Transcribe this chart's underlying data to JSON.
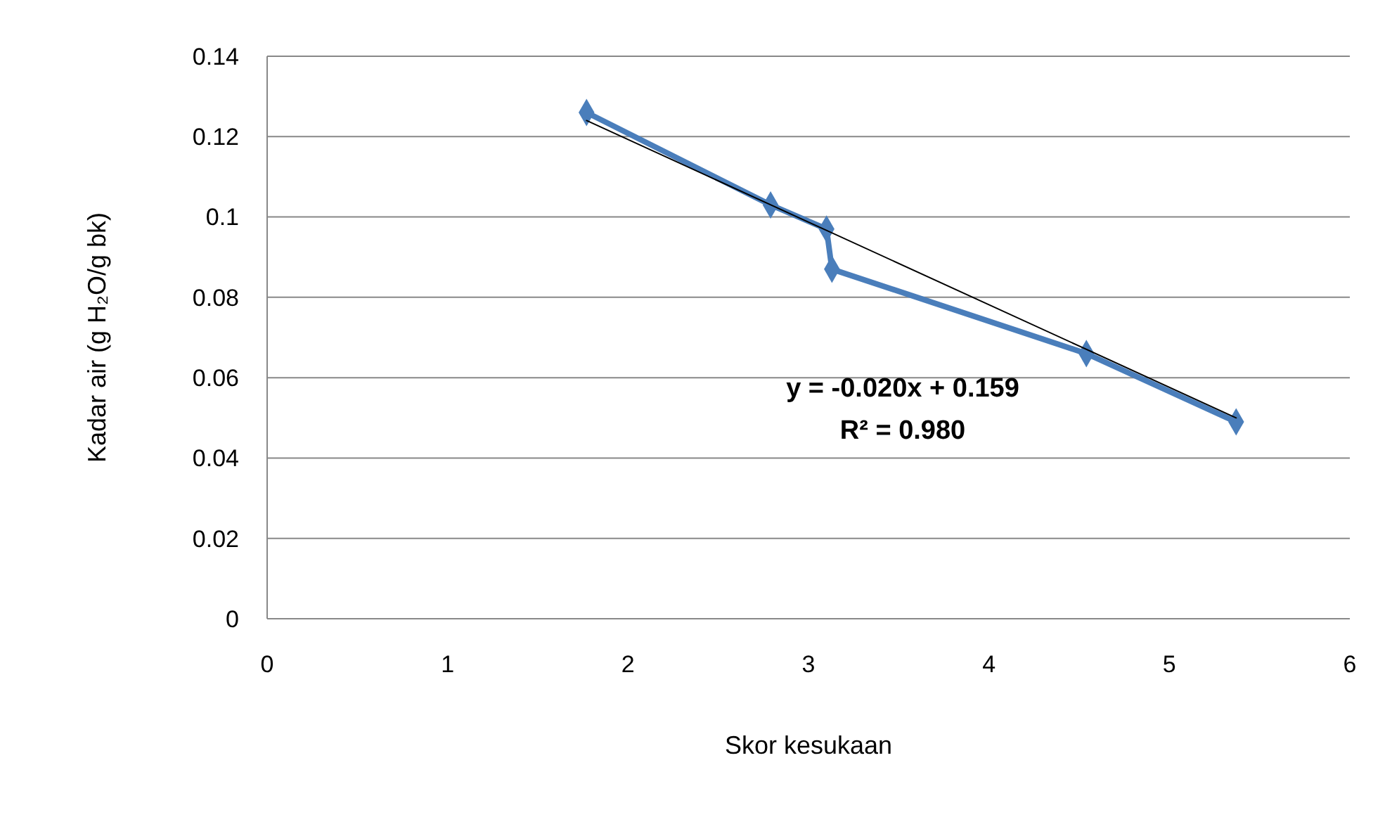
{
  "chart_data": {
    "type": "line",
    "xlabel": "Skor kesukaan",
    "ylabel": "Kadar air (g H₂O/g bk)",
    "xlim": [
      0,
      6
    ],
    "xticks": [
      0,
      1,
      2,
      3,
      4,
      5,
      6
    ],
    "ylim": [
      0,
      0.14
    ],
    "yticks": [
      0,
      {
        "value": 0.02,
        "label": "0.02"
      },
      {
        "value": 0.04,
        "label": "0.04"
      },
      {
        "value": 0.06,
        "label": "0.06"
      },
      {
        "value": 0.08,
        "label": "0.08"
      },
      0.1,
      {
        "value": 0.12,
        "label": "0.12"
      },
      {
        "value": 0.14,
        "label": "0.14"
      }
    ],
    "grid": "y",
    "series": [
      {
        "type": "line",
        "color": "#4a7ebb",
        "marker": "diamond",
        "x": [
          1.77,
          2.79,
          3.1,
          3.13,
          4.54,
          5.37
        ],
        "values": [
          0.126,
          0.103,
          0.097,
          0.087,
          0.066,
          0.049
        ]
      },
      {
        "type": "line",
        "color": "#000000",
        "marker": "none",
        "x": [
          1.77,
          5.37
        ],
        "values": [
          0.124,
          0.05
        ]
      }
    ],
    "annotations": [
      "y = -0.020x + 0.159",
      "R² = 0.980"
    ]
  }
}
